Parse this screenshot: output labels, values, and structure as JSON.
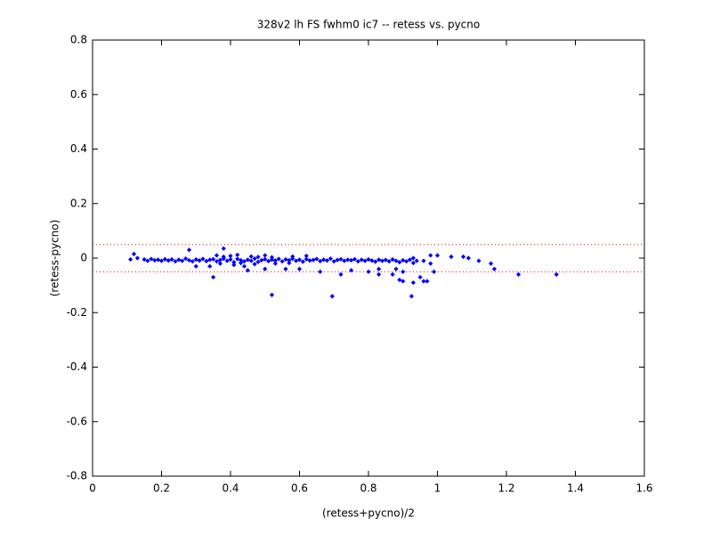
{
  "chart_data": {
    "type": "scatter",
    "title": "328v2 lh FS fwhm0 ic7 -- retess vs. pycno",
    "xlabel": "(retess+pycno)/2",
    "ylabel": "(retess-pycno)",
    "xlim": [
      0,
      1.6
    ],
    "ylim": [
      -0.8,
      0.8
    ],
    "xticks": [
      0,
      0.2,
      0.4,
      0.6,
      0.8,
      1,
      1.2,
      1.4,
      1.6
    ],
    "yticks": [
      -0.8,
      -0.6,
      -0.4,
      -0.2,
      0,
      0.2,
      0.4,
      0.6,
      0.8
    ],
    "color": "#0000ff",
    "reference_lines": {
      "values": [
        0.05,
        -0.05
      ],
      "color": "#ff0000"
    },
    "x": [
      0.15,
      0.16,
      0.17,
      0.18,
      0.19,
      0.2,
      0.21,
      0.22,
      0.23,
      0.24,
      0.25,
      0.26,
      0.27,
      0.28,
      0.29,
      0.3,
      0.31,
      0.32,
      0.33,
      0.34,
      0.35,
      0.36,
      0.37,
      0.38,
      0.39,
      0.4,
      0.41,
      0.42,
      0.43,
      0.44,
      0.45,
      0.46,
      0.47,
      0.48,
      0.49,
      0.5,
      0.51,
      0.52,
      0.53,
      0.54,
      0.55,
      0.56,
      0.57,
      0.58,
      0.59,
      0.6,
      0.61,
      0.62,
      0.63,
      0.64,
      0.65,
      0.66,
      0.67,
      0.68,
      0.69,
      0.7,
      0.71,
      0.72,
      0.73,
      0.74,
      0.75,
      0.76,
      0.77,
      0.78,
      0.79,
      0.8,
      0.81,
      0.82,
      0.83,
      0.84,
      0.85,
      0.86,
      0.87,
      0.88,
      0.89,
      0.9,
      0.91,
      0.92,
      0.93,
      0.94,
      0.36,
      0.38,
      0.4,
      0.42,
      0.46,
      0.48,
      0.5,
      0.52,
      0.58,
      0.62,
      0.37,
      0.41,
      0.43,
      0.47,
      0.53,
      0.57,
      0.28,
      0.38,
      0.52,
      0.695,
      0.925,
      1.235,
      1.345,
      1.165,
      1.155,
      1.12,
      1.09,
      1.04,
      1.0,
      1.075,
      0.12,
      0.11,
      0.13,
      0.35,
      0.34,
      0.3,
      0.44,
      0.45,
      0.5,
      0.56,
      0.6,
      0.66,
      0.72,
      0.75,
      0.8,
      0.83,
      0.87,
      0.89,
      0.9,
      0.93,
      0.95,
      0.96,
      0.97,
      0.99,
      0.98,
      0.83,
      0.88,
      0.9,
      0.96,
      0.93,
      0.98
    ],
    "values": [
      -0.005,
      -0.01,
      -0.003,
      -0.008,
      -0.006,
      -0.01,
      -0.004,
      -0.009,
      -0.005,
      -0.012,
      -0.006,
      -0.01,
      -0.002,
      -0.008,
      -0.012,
      -0.005,
      -0.009,
      -0.003,
      -0.011,
      -0.006,
      -0.004,
      -0.012,
      -0.007,
      -0.002,
      -0.01,
      -0.005,
      -0.015,
      -0.003,
      -0.008,
      -0.012,
      -0.006,
      -0.01,
      -0.002,
      -0.014,
      -0.008,
      -0.004,
      -0.011,
      -0.006,
      -0.009,
      -0.003,
      -0.012,
      -0.005,
      -0.008,
      -0.002,
      -0.01,
      -0.006,
      -0.013,
      -0.004,
      -0.009,
      -0.007,
      -0.003,
      -0.011,
      -0.006,
      -0.009,
      -0.002,
      -0.012,
      -0.007,
      -0.004,
      -0.01,
      -0.006,
      -0.008,
      -0.004,
      -0.012,
      -0.006,
      -0.01,
      -0.005,
      -0.009,
      -0.013,
      -0.006,
      -0.01,
      -0.007,
      -0.012,
      -0.005,
      -0.01,
      -0.015,
      -0.008,
      -0.012,
      -0.006,
      -0.018,
      -0.01,
      0.01,
      0.005,
      0.008,
      0.012,
      0.006,
      0.004,
      0.01,
      0.003,
      0.006,
      0.008,
      -0.02,
      -0.025,
      -0.018,
      -0.022,
      -0.02,
      -0.018,
      0.03,
      0.035,
      -0.135,
      -0.14,
      -0.14,
      -0.06,
      -0.06,
      -0.04,
      -0.02,
      -0.01,
      0.0,
      0.005,
      0.01,
      0.005,
      0.015,
      -0.005,
      0.0,
      -0.07,
      -0.03,
      -0.03,
      -0.03,
      -0.045,
      -0.04,
      -0.04,
      -0.04,
      -0.05,
      -0.06,
      -0.045,
      -0.05,
      -0.06,
      -0.06,
      -0.08,
      -0.085,
      -0.09,
      -0.07,
      -0.085,
      -0.085,
      -0.05,
      -0.02,
      -0.04,
      -0.04,
      -0.05,
      -0.01,
      0.0,
      0.01
    ]
  }
}
